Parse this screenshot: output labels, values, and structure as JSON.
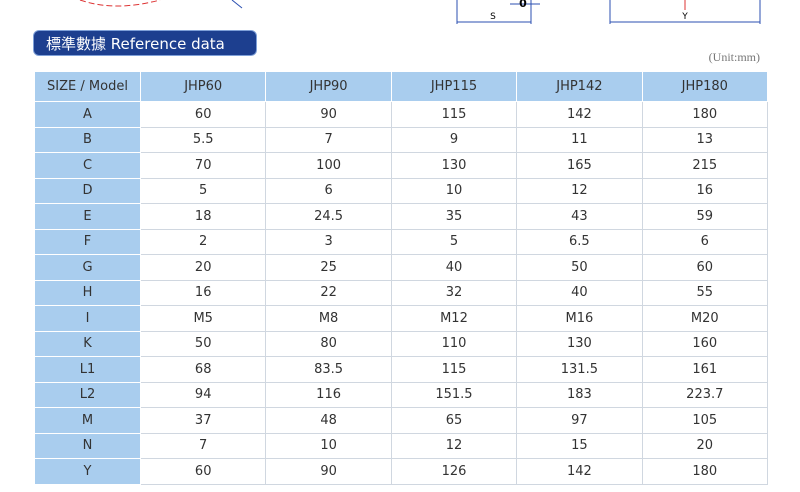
{
  "diagram": {
    "labels": [
      "0",
      "S",
      "Y"
    ]
  },
  "header": {
    "title": "標準數據 Reference data",
    "unit": "(Unit:mm)"
  },
  "table": {
    "header": [
      "SIZE / Model",
      "JHP60",
      "JHP90",
      "JHP115",
      "JHP142",
      "JHP180"
    ],
    "rows": [
      [
        "A",
        "60",
        "90",
        "115",
        "142",
        "180"
      ],
      [
        "B",
        "5.5",
        "7",
        "9",
        "11",
        "13"
      ],
      [
        "C",
        "70",
        "100",
        "130",
        "165",
        "215"
      ],
      [
        "D",
        "5",
        "6",
        "10",
        "12",
        "16"
      ],
      [
        "E",
        "18",
        "24.5",
        "35",
        "43",
        "59"
      ],
      [
        "F",
        "2",
        "3",
        "5",
        "6.5",
        "6"
      ],
      [
        "G",
        "20",
        "25",
        "40",
        "50",
        "60"
      ],
      [
        "H",
        "16",
        "22",
        "32",
        "40",
        "55"
      ],
      [
        "I",
        "M5",
        "M8",
        "M12",
        "M16",
        "M20"
      ],
      [
        "K",
        "50",
        "80",
        "110",
        "130",
        "160"
      ],
      [
        "L1",
        "68",
        "83.5",
        "115",
        "131.5",
        "161"
      ],
      [
        "L2",
        "94",
        "116",
        "151.5",
        "183",
        "223.7"
      ],
      [
        "M",
        "37",
        "48",
        "65",
        "97",
        "105"
      ],
      [
        "N",
        "7",
        "10",
        "12",
        "15",
        "20"
      ],
      [
        "Y",
        "60",
        "90",
        "126",
        "142",
        "180"
      ]
    ]
  }
}
